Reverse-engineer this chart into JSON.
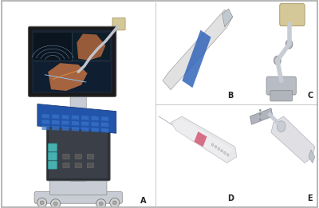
{
  "figure_width": 4.0,
  "figure_height": 2.61,
  "dpi": 100,
  "background_color": "#ffffff",
  "label_fontsize": 7,
  "label_color": "#222222",
  "label_fontweight": "bold",
  "labels": [
    "A",
    "B",
    "C",
    "D",
    "E"
  ],
  "cart_colors": {
    "body_dark": "#2a2e35",
    "body_light": "#c8cdd5",
    "screen_bg": "#1a2535",
    "tablet_bg": "#2255aa",
    "arm_color": "#c0c4cc",
    "wheel_color": "#d0d0d0",
    "teal_accent": "#48b0b0",
    "sensor_color": "#d4c898"
  },
  "probe_colors": {
    "body": "#e0e0e0",
    "blue_band": "#3366bb"
  },
  "arm_colors": {
    "arm": "#c8ccd4",
    "joint": "#b0b4bc",
    "sensor_box": "#d4c898",
    "clamp": "#b8bcc4"
  },
  "needle_colors": {
    "body": "#e8e8ec",
    "pink_band": "#d4607a"
  },
  "guide_colors": {
    "metal_plate": "#b0b4bc",
    "body": "#e0e0e4",
    "joint": "#c8ccd4"
  }
}
